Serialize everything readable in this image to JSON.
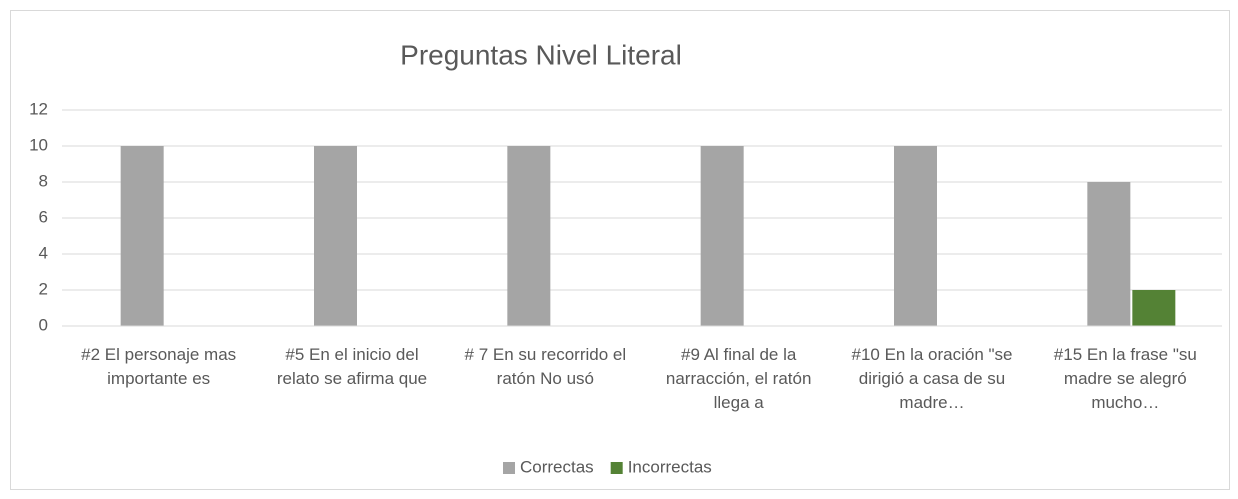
{
  "chart_data": {
    "type": "bar",
    "title": "Preguntas Nivel Literal",
    "categories": [
      "#2 El personaje mas importante es",
      "#5 En el inicio del relato se afirma que",
      "# 7 En su recorrido el ratón No usó",
      "#9 Al final de la narracción, el ratón llega a",
      "#10 En la oración \"se dirigió a casa de su madre…",
      "#15 En la frase \"su madre se alegró mucho…"
    ],
    "series": [
      {
        "name": "Correctas",
        "color": "#a5a5a5",
        "values": [
          10,
          10,
          10,
          10,
          10,
          8
        ]
      },
      {
        "name": "Incorrectas",
        "color": "#548235",
        "values": [
          0,
          0,
          0,
          0,
          0,
          2
        ]
      }
    ],
    "ylim": [
      0,
      12
    ],
    "yticks": [
      0,
      2,
      4,
      6,
      8,
      10,
      12
    ],
    "grid": true,
    "legend": "bottom"
  }
}
